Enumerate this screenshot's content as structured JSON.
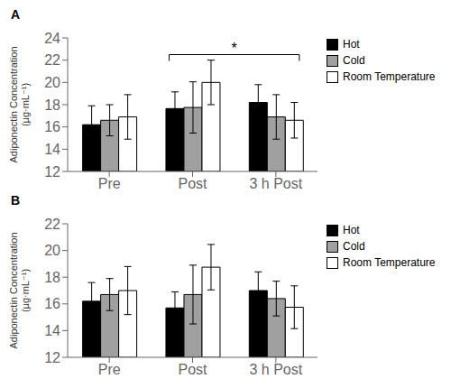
{
  "chart_data": [
    {
      "type": "bar",
      "title": "A",
      "categories": [
        "Pre",
        "Post",
        "3 h Post"
      ],
      "series": [
        {
          "name": "Hot",
          "color": "#000000",
          "values": [
            16.2,
            17.65,
            18.2
          ],
          "errors": [
            1.7,
            1.5,
            1.6
          ]
        },
        {
          "name": "Cold",
          "color": "#a0a0a0",
          "values": [
            16.6,
            17.75,
            16.9
          ],
          "errors": [
            1.4,
            2.3,
            2.0
          ]
        },
        {
          "name": "Room Temperature",
          "color": "#ffffff",
          "values": [
            16.9,
            20.0,
            16.6
          ],
          "errors": [
            2.0,
            2.0,
            1.6
          ]
        }
      ],
      "ylabel": "Adiponectin Concentration\n(µg·mL⁻¹)",
      "ylim": [
        12,
        24
      ],
      "yticks": [
        12,
        14,
        16,
        18,
        20,
        22,
        24
      ],
      "grid": false,
      "legend": "right",
      "annotations": [
        {
          "text": "*",
          "x1": "Post",
          "x2": "3 h Post",
          "y": 22.5
        }
      ]
    },
    {
      "type": "bar",
      "title": "B",
      "categories": [
        "Pre",
        "Post",
        "3 h Post"
      ],
      "series": [
        {
          "name": "Hot",
          "color": "#000000",
          "values": [
            16.2,
            15.7,
            17.0
          ],
          "errors": [
            1.4,
            1.2,
            1.4
          ]
        },
        {
          "name": "Cold",
          "color": "#a0a0a0",
          "values": [
            16.7,
            16.7,
            16.4
          ],
          "errors": [
            1.2,
            2.2,
            1.3
          ]
        },
        {
          "name": "Room Temperature",
          "color": "#ffffff",
          "values": [
            17.0,
            18.75,
            15.75
          ],
          "errors": [
            1.8,
            1.7,
            1.6
          ]
        }
      ],
      "ylabel": "Adiponectin Concentration\n(µg·mL⁻¹)",
      "ylim": [
        12,
        22
      ],
      "yticks": [
        12,
        14,
        16,
        18,
        20,
        22
      ],
      "grid": false,
      "legend": "right"
    }
  ]
}
